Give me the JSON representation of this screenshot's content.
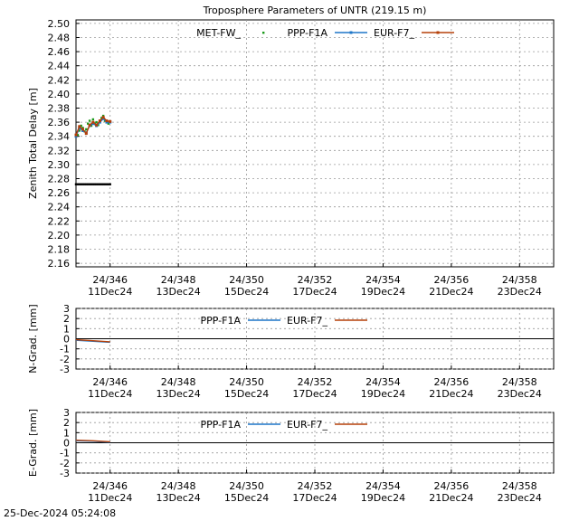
{
  "chart_data": [
    {
      "type": "line",
      "title": "Troposphere Parameters of UNTR (219.15 m)",
      "ylabel": "Zenith Total Delay [m]",
      "xlabel": "",
      "xlim": [
        345,
        359
      ],
      "ylim": [
        2.155,
        2.505
      ],
      "grid": true,
      "legend_position": "top",
      "yticks": [
        "2.16",
        "2.18",
        "2.20",
        "2.22",
        "2.24",
        "2.26",
        "2.28",
        "2.30",
        "2.32",
        "2.34",
        "2.36",
        "2.38",
        "2.40",
        "2.42",
        "2.44",
        "2.46",
        "2.48",
        "2.50"
      ],
      "xticks": [
        {
          "doy": "24/346",
          "date": "11Dec24"
        },
        {
          "doy": "24/348",
          "date": "13Dec24"
        },
        {
          "doy": "24/350",
          "date": "15Dec24"
        },
        {
          "doy": "24/352",
          "date": "17Dec24"
        },
        {
          "doy": "24/354",
          "date": "19Dec24"
        },
        {
          "doy": "24/356",
          "date": "21Dec24"
        },
        {
          "doy": "24/358",
          "date": "23Dec24"
        }
      ],
      "series": [
        {
          "name": "MET-FW_",
          "color": "#1a9a1a",
          "x": [
            345.05,
            345.1,
            345.15,
            345.2,
            345.25,
            345.3,
            345.35,
            345.4,
            345.45,
            345.5,
            345.55,
            345.6,
            345.65,
            345.7,
            345.75,
            345.8,
            345.85,
            345.9,
            345.95,
            346.0
          ],
          "values": [
            2.342,
            2.348,
            2.355,
            2.352,
            2.347,
            2.35,
            2.358,
            2.362,
            2.355,
            2.364,
            2.358,
            2.36,
            2.356,
            2.362,
            2.366,
            2.369,
            2.362,
            2.36,
            2.358,
            2.36
          ]
        },
        {
          "name": "PPP-F1A",
          "color": "#1f77c8",
          "x": [
            345.0,
            345.1,
            345.2,
            345.3,
            345.4,
            345.5,
            345.6,
            345.7,
            345.8,
            345.9,
            346.0
          ],
          "values": [
            2.34,
            2.352,
            2.348,
            2.345,
            2.355,
            2.358,
            2.355,
            2.36,
            2.365,
            2.36,
            2.36
          ]
        },
        {
          "name": "EUR-F7_",
          "color": "#b5400a",
          "x": [
            345.0,
            345.1,
            345.2,
            345.3,
            345.4,
            345.5,
            345.6,
            345.7,
            345.8,
            345.9,
            346.0
          ],
          "values": [
            2.342,
            2.354,
            2.35,
            2.344,
            2.356,
            2.36,
            2.356,
            2.362,
            2.367,
            2.362,
            2.361
          ]
        },
        {
          "name": "",
          "color": "#000000",
          "x": [
            345.0,
            345.05,
            345.1,
            345.15,
            345.2,
            345.25,
            345.3,
            345.35,
            345.4,
            345.45,
            345.5,
            345.55,
            345.6,
            345.65,
            345.7,
            345.75,
            345.8,
            345.85,
            345.9,
            345.95,
            346.0
          ],
          "values": [
            2.272,
            2.272,
            2.272,
            2.272,
            2.272,
            2.272,
            2.272,
            2.272,
            2.272,
            2.272,
            2.272,
            2.272,
            2.272,
            2.272,
            2.272,
            2.272,
            2.272,
            2.272,
            2.272,
            2.272,
            2.272
          ]
        }
      ]
    },
    {
      "type": "line",
      "title": "",
      "ylabel": "N-Grad. [mm]",
      "xlim": [
        345,
        359
      ],
      "ylim": [
        -3,
        3
      ],
      "grid": true,
      "yticks": [
        "3",
        "2",
        "1",
        "0",
        "-1",
        "-2",
        "-3"
      ],
      "xticks": [
        {
          "doy": "24/346",
          "date": "11Dec24"
        },
        {
          "doy": "24/348",
          "date": "13Dec24"
        },
        {
          "doy": "24/350",
          "date": "15Dec24"
        },
        {
          "doy": "24/352",
          "date": "17Dec24"
        },
        {
          "doy": "24/354",
          "date": "19Dec24"
        },
        {
          "doy": "24/356",
          "date": "21Dec24"
        },
        {
          "doy": "24/358",
          "date": "23Dec24"
        }
      ],
      "series": [
        {
          "name": "PPP-F1A",
          "color": "#1f77c8",
          "x": [
            345.0,
            345.5,
            346.0
          ],
          "values": [
            -0.15,
            -0.25,
            -0.35
          ]
        },
        {
          "name": "EUR-F7_",
          "color": "#b5400a",
          "x": [
            345.0,
            345.5,
            346.0
          ],
          "values": [
            -0.1,
            -0.2,
            -0.3
          ]
        }
      ]
    },
    {
      "type": "line",
      "title": "",
      "ylabel": "E-Grad. [mm]",
      "xlim": [
        345,
        359
      ],
      "ylim": [
        -3,
        3
      ],
      "grid": true,
      "yticks": [
        "3",
        "2",
        "1",
        "0",
        "-1",
        "-2",
        "-3"
      ],
      "xticks": [
        {
          "doy": "24/346",
          "date": "11Dec24"
        },
        {
          "doy": "24/348",
          "date": "13Dec24"
        },
        {
          "doy": "24/350",
          "date": "15Dec24"
        },
        {
          "doy": "24/352",
          "date": "17Dec24"
        },
        {
          "doy": "24/354",
          "date": "19Dec24"
        },
        {
          "doy": "24/356",
          "date": "21Dec24"
        },
        {
          "doy": "24/358",
          "date": "23Dec24"
        }
      ],
      "series": [
        {
          "name": "PPP-F1A",
          "color": "#1f77c8",
          "x": [
            345.0,
            345.5,
            346.0
          ],
          "values": [
            0.2,
            0.15,
            0.05
          ]
        },
        {
          "name": "EUR-F7_",
          "color": "#b5400a",
          "x": [
            345.0,
            345.5,
            346.0
          ],
          "values": [
            0.25,
            0.2,
            0.1
          ]
        }
      ]
    }
  ],
  "footer": {
    "timestamp": "25-Dec-2024 05:24:08"
  }
}
